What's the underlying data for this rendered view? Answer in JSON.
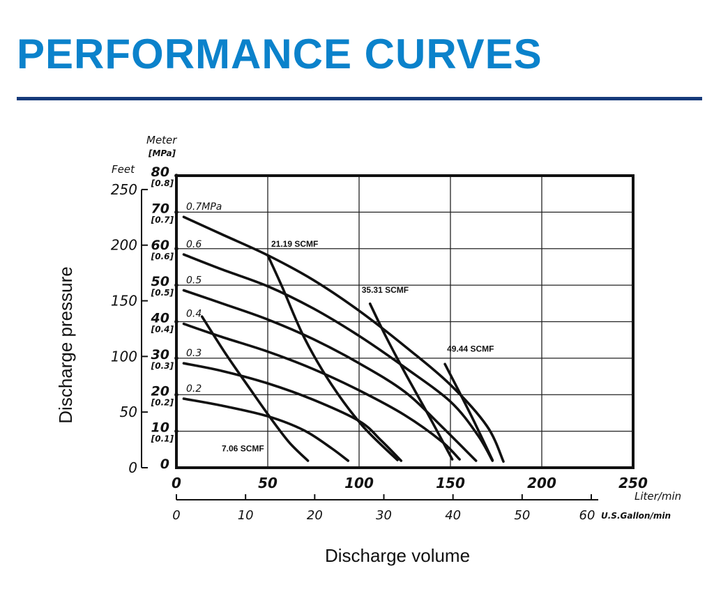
{
  "header": {
    "title": "PERFORMANCE CURVES"
  },
  "chart_data": {
    "type": "line",
    "xlabel": "Discharge volume",
    "ylabel": "Discharge pressure",
    "x_unit_primary": "Liter/min",
    "x_unit_secondary": "U.S.Gallon/min",
    "y_unit_feet": "Feet",
    "y_unit_meter": "Meter",
    "y_unit_mpa": "[MPa]",
    "xlim": [
      0,
      250
    ],
    "ylim_meter": [
      0,
      80
    ],
    "x_ticks_lpm": [
      0,
      50,
      100,
      150,
      200,
      250
    ],
    "x_ticks_lpm_labels": [
      "0",
      "50",
      "100",
      "150",
      "200",
      "250"
    ],
    "x_ticks_gpm": [
      0,
      10,
      20,
      30,
      40,
      50,
      60
    ],
    "x_ticks_gpm_labels": [
      "0",
      "10",
      "20",
      "30",
      "40",
      "50",
      "60"
    ],
    "y_ticks_feet": [
      0,
      50,
      100,
      150,
      200,
      250
    ],
    "y_ticks_feet_labels": [
      "0",
      "50",
      "100",
      "150",
      "200",
      "250"
    ],
    "y_ticks_meter": [
      0,
      10,
      20,
      30,
      40,
      50,
      60,
      70,
      80
    ],
    "y_ticks_meter_labels": [
      "0",
      "10",
      "20",
      "30",
      "40",
      "50",
      "60",
      "70",
      "80"
    ],
    "y_ticks_mpa": [
      {
        "m": 10,
        "label": "[0.1]"
      },
      {
        "m": 20,
        "label": "[0.2]"
      },
      {
        "m": 30,
        "label": "[0.3]"
      },
      {
        "m": 40,
        "label": "[0.4]"
      },
      {
        "m": 50,
        "label": "[0.5]"
      },
      {
        "m": 60,
        "label": "[0.6]"
      },
      {
        "m": 70,
        "label": "[0.7]"
      },
      {
        "m": 80,
        "label": "[0.8]"
      }
    ],
    "grid": true,
    "series": [
      {
        "name": "0.7MPa",
        "points": [
          [
            4,
            68.7
          ],
          [
            25,
            63.9
          ],
          [
            50,
            58.2
          ],
          [
            75,
            51.4
          ],
          [
            100,
            43.0
          ],
          [
            125,
            33.3
          ],
          [
            150,
            22.7
          ],
          [
            170,
            11.4
          ],
          [
            179,
            1.7
          ]
        ]
      },
      {
        "name": "0.6",
        "points": [
          [
            4,
            58.4
          ],
          [
            25,
            54.3
          ],
          [
            50,
            49.7
          ],
          [
            75,
            43.6
          ],
          [
            100,
            36.1
          ],
          [
            125,
            27.5
          ],
          [
            150,
            18.1
          ],
          [
            165,
            8.9
          ],
          [
            173,
            1.9
          ]
        ]
      },
      {
        "name": "0.5",
        "points": [
          [
            4,
            48.6
          ],
          [
            25,
            45.0
          ],
          [
            50,
            40.6
          ],
          [
            75,
            35.2
          ],
          [
            100,
            28.6
          ],
          [
            125,
            20.8
          ],
          [
            145,
            11.4
          ],
          [
            164,
            1.9
          ]
        ]
      },
      {
        "name": "0.4",
        "points": [
          [
            4,
            39.4
          ],
          [
            25,
            35.8
          ],
          [
            50,
            31.8
          ],
          [
            75,
            27.0
          ],
          [
            100,
            21.2
          ],
          [
            125,
            14.4
          ],
          [
            145,
            7.3
          ],
          [
            155,
            2.3
          ]
        ]
      },
      {
        "name": "0.3",
        "points": [
          [
            4,
            28.6
          ],
          [
            25,
            26.5
          ],
          [
            50,
            23.1
          ],
          [
            75,
            18.6
          ],
          [
            100,
            12.8
          ],
          [
            112,
            7.5
          ],
          [
            123,
            1.9
          ]
        ]
      },
      {
        "name": "0.2",
        "points": [
          [
            4,
            18.9
          ],
          [
            25,
            17.0
          ],
          [
            50,
            14.1
          ],
          [
            70,
            10.2
          ],
          [
            85,
            5.3
          ],
          [
            94,
            1.9
          ]
        ]
      }
    ],
    "air_consumption_lines": [
      {
        "label": "7.06 SCMF",
        "points": [
          [
            14,
            41.4
          ],
          [
            27,
            31.2
          ],
          [
            40,
            21.8
          ],
          [
            52,
            13.3
          ],
          [
            62,
            6.8
          ],
          [
            72,
            1.9
          ]
        ]
      },
      {
        "label": "21.19 SCMF",
        "points": [
          [
            50,
            58.2
          ],
          [
            58,
            49.4
          ],
          [
            70,
            35.6
          ],
          [
            85,
            22.7
          ],
          [
            102,
            11.4
          ],
          [
            121,
            2.1
          ]
        ]
      },
      {
        "name": "35.31 SCMF",
        "label": "35.31 SCMF",
        "points": [
          [
            106,
            44.9
          ],
          [
            115,
            35.6
          ],
          [
            126,
            25.2
          ],
          [
            138,
            14.4
          ],
          [
            151,
            2.3
          ]
        ]
      },
      {
        "label": "49.44 SCMF",
        "points": [
          [
            147,
            28.4
          ],
          [
            155,
            20.6
          ],
          [
            163,
            12.6
          ],
          [
            173,
            2.1
          ]
        ]
      }
    ]
  }
}
